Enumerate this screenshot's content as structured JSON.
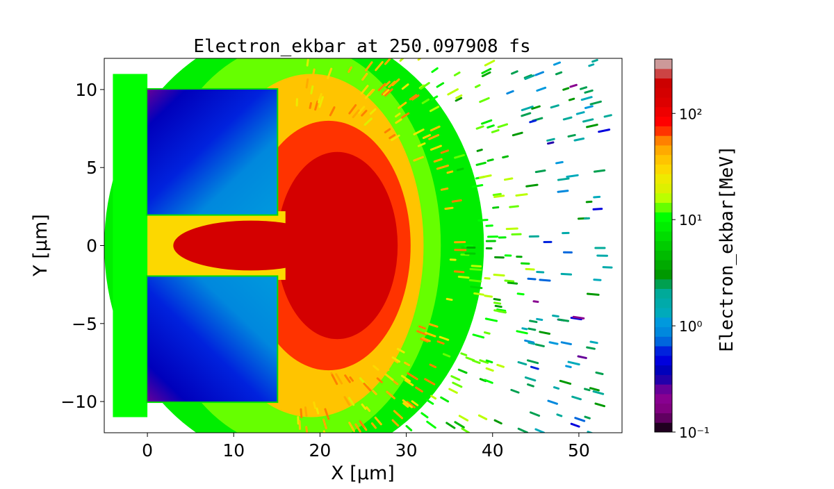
{
  "chart_data": {
    "type": "heatmap",
    "title": "Electron_ekbar at 250.097908 fs",
    "xlabel": "X  [μm]",
    "ylabel": "Y  [μm]",
    "xlim": [
      -5,
      55
    ],
    "ylim": [
      -12,
      12
    ],
    "xticks": [
      0,
      10,
      20,
      30,
      40,
      50
    ],
    "xtick_labels": [
      "0",
      "10",
      "20",
      "30",
      "40",
      "50"
    ],
    "yticks": [
      10,
      5,
      0,
      -5,
      -10
    ],
    "ytick_labels": [
      "10",
      "5",
      "0",
      "−5",
      "−10"
    ],
    "colorbar": {
      "label": "Electron_ekbar[MeV]",
      "scale": "log",
      "range": [
        0.1,
        325
      ],
      "ticks": [
        0.1,
        1,
        10,
        100
      ],
      "tick_labels": [
        "10⁻¹",
        "10⁰",
        "10¹",
        "10²"
      ],
      "colormap": "nipy_spectral (discrete)",
      "colors": [
        "#200020",
        "#600060",
        "#800080",
        "#880090",
        "#660099",
        "#2200aa",
        "#0000bb",
        "#0000dd",
        "#0022dd",
        "#0066dd",
        "#0088dd",
        "#0099dd",
        "#00aabb",
        "#00aaaa",
        "#00aa99",
        "#00a050",
        "#009900",
        "#00aa00",
        "#00bb00",
        "#00cc00",
        "#00dd00",
        "#00ee00",
        "#00ff00",
        "#66ff00",
        "#bbff00",
        "#ddf000",
        "#eeea00",
        "#fcd800",
        "#ffc400",
        "#ffaa00",
        "#ff8000",
        "#ff3300",
        "#ff0000",
        "#ee0000",
        "#dd0000",
        "#d40000",
        "#cc0000",
        "#cc4444",
        "#cc9999"
      ]
    },
    "regions": [
      {
        "name": "outer-halo",
        "shape": "ellipse",
        "cx": 17,
        "cy": 0,
        "rx": 22,
        "ry": 14,
        "value": 8
      },
      {
        "name": "green-halo",
        "shape": "ellipse",
        "cx": 17,
        "cy": 0,
        "rx": 17,
        "ry": 13,
        "value": 14
      },
      {
        "name": "yellow-halo",
        "shape": "ellipse",
        "cx": 19,
        "cy": 0,
        "rx": 13,
        "ry": 11,
        "value": 35
      },
      {
        "name": "orange-halo",
        "shape": "ellipse",
        "cx": 21,
        "cy": 0,
        "rx": 9.5,
        "ry": 8,
        "value": 70
      },
      {
        "name": "hot-core",
        "shape": "ellipse",
        "cx": 22,
        "cy": 0,
        "rx": 7,
        "ry": 6,
        "value": 150
      },
      {
        "name": "left-sheath",
        "shape": "rect",
        "x0": -4,
        "x1": 0,
        "y0": -11,
        "y1": 11,
        "value": 10
      },
      {
        "name": "channel-sheath",
        "shape": "rect",
        "x0": 0,
        "x1": 16,
        "y0": -2.2,
        "y1": 2.2,
        "value": 30
      },
      {
        "name": "channel-core",
        "shape": "ellipse",
        "cx": 12,
        "cy": 0,
        "rx": 9,
        "ry": 1.6,
        "value": 150
      },
      {
        "name": "upper-target",
        "shape": "rect",
        "x0": 0,
        "x1": 15,
        "y0": 2,
        "y1": 10,
        "value": 1
      },
      {
        "name": "lower-target",
        "shape": "rect",
        "x0": 0,
        "x1": 15,
        "y0": -10,
        "y1": -2,
        "value": 1
      }
    ],
    "grid": false
  }
}
